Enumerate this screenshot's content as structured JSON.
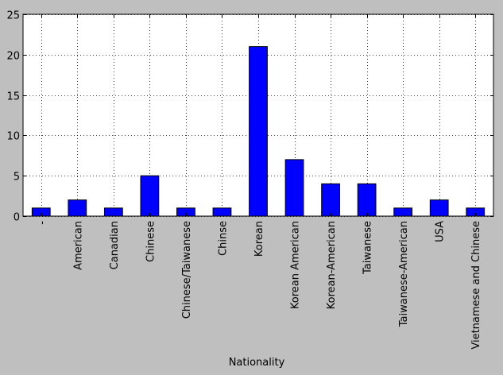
{
  "chart_data": {
    "type": "bar",
    "title": "",
    "xlabel": "Nationality",
    "ylabel": "",
    "categories": [
      "-",
      "American",
      "Canadian",
      "Chinese",
      "Chinese/Taiwanese",
      "Chinse",
      "Korean",
      "Korean American",
      "Korean-American",
      "Taiwanese",
      "Taiwanese-American",
      "USA",
      "Vietnamese and Chinese"
    ],
    "values": [
      1,
      2,
      1,
      5,
      1,
      1,
      21,
      7,
      4,
      4,
      1,
      2,
      1
    ],
    "ylim": [
      0,
      25
    ],
    "yticks": [
      0,
      5,
      10,
      15,
      20,
      25
    ],
    "ytick_labels": [
      "0",
      "5",
      "10",
      "15",
      "20",
      "25"
    ],
    "grid": true,
    "legend": "none",
    "bar_color": "#0000ff",
    "figure_background": "#bfbfbf",
    "plot_background": "#ffffff"
  }
}
